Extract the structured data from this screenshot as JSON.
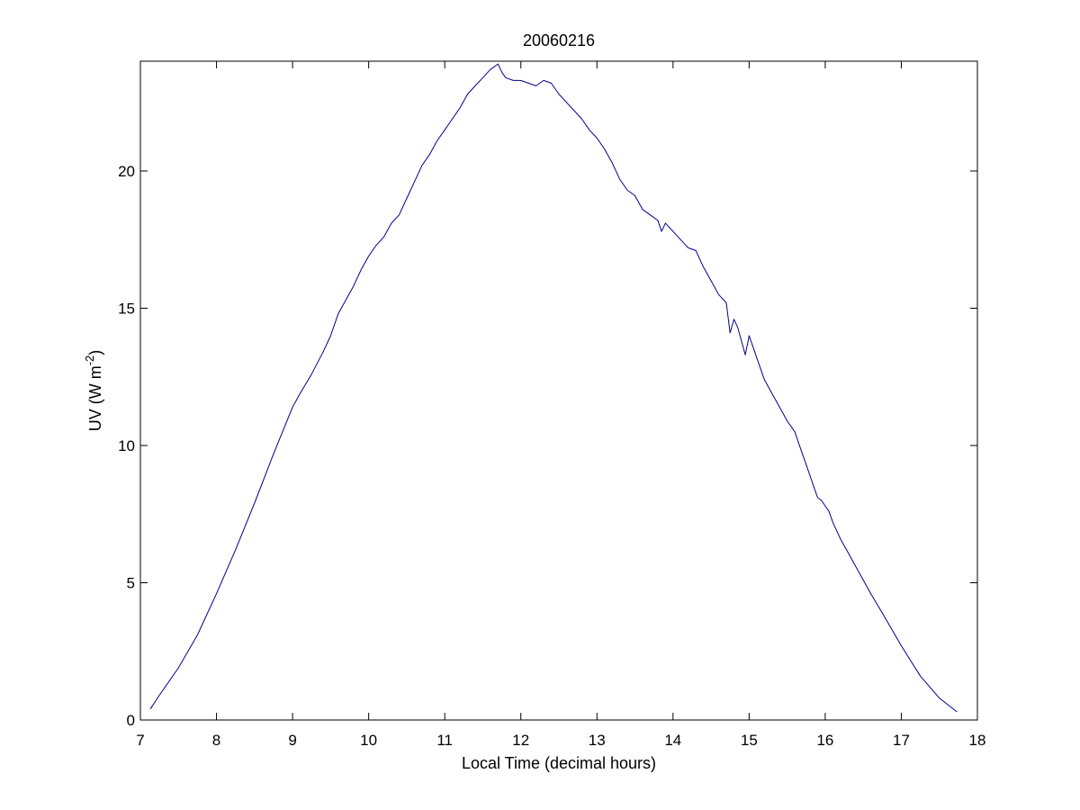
{
  "chart_data": {
    "type": "line",
    "title": "20060216",
    "xlabel": "Local Time (decimal hours)",
    "ylabel": {
      "prefix": "UV (W m",
      "superscript": "-2",
      "suffix": ")"
    },
    "xlim": [
      7,
      18
    ],
    "ylim": [
      0,
      24
    ],
    "xticks": [
      7,
      8,
      9,
      10,
      11,
      12,
      13,
      14,
      15,
      16,
      17,
      18
    ],
    "yticks": [
      0,
      5,
      10,
      15,
      20
    ],
    "grid": false,
    "legend": "none",
    "series": [
      {
        "color": "#00008b",
        "x": [
          7.13,
          7.25,
          7.5,
          7.75,
          8.0,
          8.25,
          8.5,
          8.75,
          9.0,
          9.1,
          9.25,
          9.4,
          9.5,
          9.6,
          9.7,
          9.8,
          9.9,
          10.0,
          10.1,
          10.2,
          10.3,
          10.4,
          10.5,
          10.6,
          10.7,
          10.8,
          10.9,
          11.0,
          11.1,
          11.2,
          11.3,
          11.4,
          11.5,
          11.6,
          11.7,
          11.75,
          11.8,
          11.9,
          12.0,
          12.1,
          12.2,
          12.3,
          12.4,
          12.5,
          12.6,
          12.7,
          12.8,
          12.9,
          13.0,
          13.1,
          13.2,
          13.3,
          13.4,
          13.5,
          13.6,
          13.7,
          13.8,
          13.85,
          13.9,
          14.0,
          14.1,
          14.2,
          14.3,
          14.4,
          14.5,
          14.6,
          14.7,
          14.75,
          14.8,
          14.85,
          14.9,
          14.95,
          15.0,
          15.05,
          15.1,
          15.2,
          15.3,
          15.4,
          15.5,
          15.6,
          15.7,
          15.75,
          15.8,
          15.85,
          15.9,
          15.95,
          16.0,
          16.05,
          16.1,
          16.2,
          16.3,
          16.4,
          16.5,
          16.6,
          16.75,
          17.0,
          17.25,
          17.5,
          17.73
        ],
        "y": [
          0.4,
          0.9,
          1.9,
          3.1,
          4.6,
          6.2,
          7.9,
          9.7,
          11.4,
          11.9,
          12.6,
          13.4,
          14.0,
          14.8,
          15.3,
          15.8,
          16.4,
          16.9,
          17.3,
          17.6,
          18.1,
          18.4,
          19.0,
          19.6,
          20.2,
          20.6,
          21.1,
          21.5,
          21.9,
          22.3,
          22.8,
          23.1,
          23.4,
          23.7,
          23.9,
          23.6,
          23.4,
          23.3,
          23.3,
          23.2,
          23.1,
          23.3,
          23.2,
          22.8,
          22.5,
          22.2,
          21.9,
          21.5,
          21.2,
          20.8,
          20.3,
          19.7,
          19.3,
          19.1,
          18.6,
          18.4,
          18.2,
          17.8,
          18.1,
          17.8,
          17.5,
          17.2,
          17.1,
          16.5,
          16.0,
          15.5,
          15.2,
          14.1,
          14.6,
          14.3,
          13.8,
          13.3,
          14.0,
          13.6,
          13.2,
          12.4,
          11.9,
          11.4,
          10.9,
          10.5,
          9.7,
          9.3,
          8.9,
          8.5,
          8.1,
          8.0,
          7.8,
          7.6,
          7.2,
          6.6,
          6.1,
          5.6,
          5.1,
          4.6,
          3.9,
          2.7,
          1.6,
          0.8,
          0.3
        ]
      }
    ]
  }
}
